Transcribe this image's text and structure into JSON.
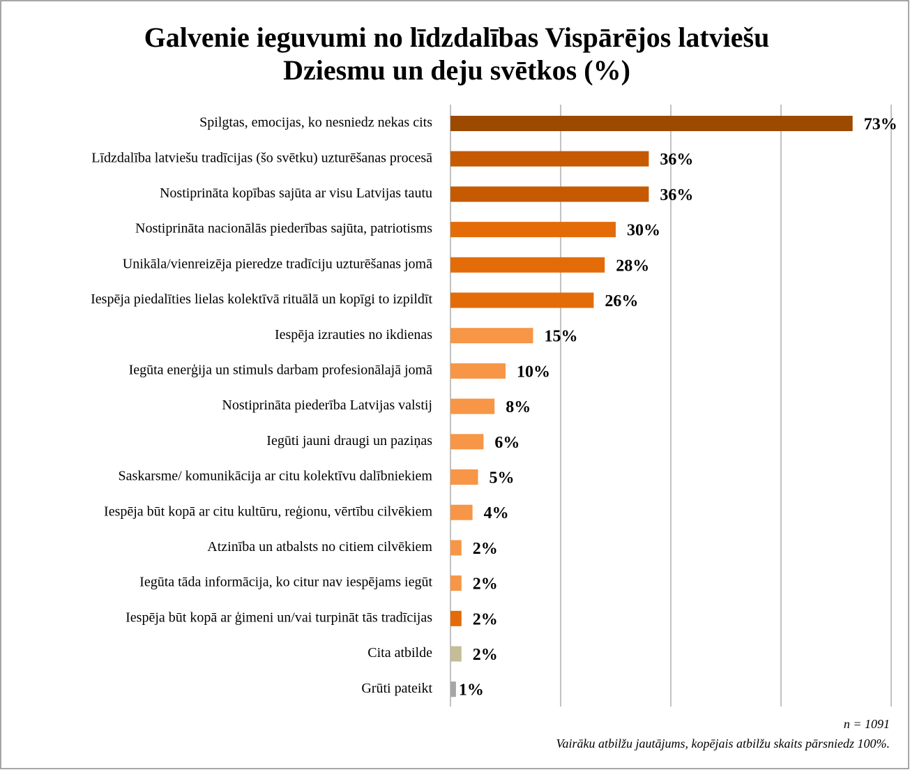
{
  "chart_data": {
    "type": "barh",
    "title": [
      "Galvenie ieguvumi no līdzdalības Vispārējos latviešu",
      "Dziesmu un deju svētkos (%)"
    ],
    "categories": [
      "Spilgtas, emocijas, ko nesniedz nekas cits",
      "Līdzdalība latviešu tradīcijas (šo svētku) uzturēšanas procesā",
      "Nostiprināta kopības sajūta ar visu Latvijas tautu",
      "Nostiprināta nacionālās piederības sajūta, patriotisms",
      "Unikāla/vienreizēja pieredze tradīciju uzturēšanas jomā",
      "Iespēja piedalīties lielas kolektīvā rituālā un kopīgi to izpildīt",
      "Iespēja izrauties no ikdienas",
      "Iegūta enerģija un stimuls darbam profesionālajā jomā",
      "Nostiprināta piederība Latvijas valstij",
      "Iegūti jauni draugi un paziņas",
      "Saskarsme/ komunikācija ar citu kolektīvu dalībniekiem",
      "Iespēja būt kopā ar citu kultūru, reģionu, vērtību cilvēkiem",
      "Atzinība un atbalsts no citiem cilvēkiem",
      "Iegūta tāda informācija, ko citur nav iespējams iegūt",
      "Iespēja būt kopā ar ģimeni un/vai turpināt tās tradīcijas",
      "Cita atbilde",
      "Grūti pateikt"
    ],
    "values": [
      73,
      36,
      36,
      30,
      28,
      26,
      15,
      10,
      8,
      6,
      5,
      4,
      2,
      2,
      2,
      2,
      1
    ],
    "value_labels": [
      "73%",
      "36%",
      "36%",
      "30%",
      "28%",
      "26%",
      "15%",
      "10%",
      "8%",
      "6%",
      "5%",
      "4%",
      "2%",
      "2%",
      "2%",
      "2%",
      "1%"
    ],
    "colors": [
      "#9c4a00",
      "#c55a00",
      "#c55a00",
      "#e36c09",
      "#e36c09",
      "#e36c09",
      "#f79646",
      "#f79646",
      "#f79646",
      "#f79646",
      "#f79646",
      "#f79646",
      "#f79646",
      "#f79646",
      "#e36c09",
      "#c4bd97",
      "#a6a6a6"
    ],
    "xlim": [
      0,
      80
    ],
    "xticks": [
      0,
      20,
      40,
      60,
      80
    ],
    "grid": true,
    "notes": [
      "n = 1091",
      "Vairāku atbilžu jautājums, kopējais atbilžu skaits pārsniedz 100%."
    ]
  }
}
